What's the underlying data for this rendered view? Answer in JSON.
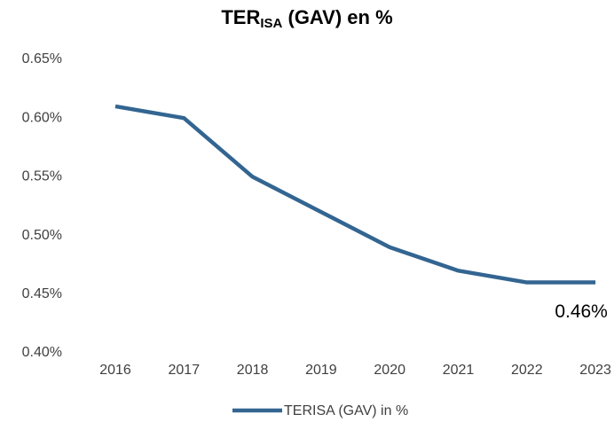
{
  "chart_data": {
    "type": "line",
    "title": {
      "main": "TER",
      "sub": "ISA",
      "tail": " (GAV) en %"
    },
    "categories": [
      "2016",
      "2017",
      "2018",
      "2019",
      "2020",
      "2021",
      "2022",
      "2023"
    ],
    "series": [
      {
        "name": "TERISA (GAV) in %",
        "color": "#336591",
        "values": [
          0.61,
          0.6,
          0.55,
          0.52,
          0.49,
          0.47,
          0.46,
          0.46
        ],
        "value_labels": [
          null,
          null,
          null,
          null,
          null,
          null,
          null,
          "0.46%"
        ]
      }
    ],
    "ylim": [
      0.4,
      0.65
    ],
    "yticks": [
      {
        "value": 0.4,
        "label": "0.40%"
      },
      {
        "value": 0.45,
        "label": "0.45%"
      },
      {
        "value": 0.5,
        "label": "0.50%"
      },
      {
        "value": 0.55,
        "label": "0.55%"
      },
      {
        "value": 0.6,
        "label": "0.60%"
      },
      {
        "value": 0.65,
        "label": "0.65%"
      }
    ],
    "grid": false,
    "legend": "bottom"
  }
}
